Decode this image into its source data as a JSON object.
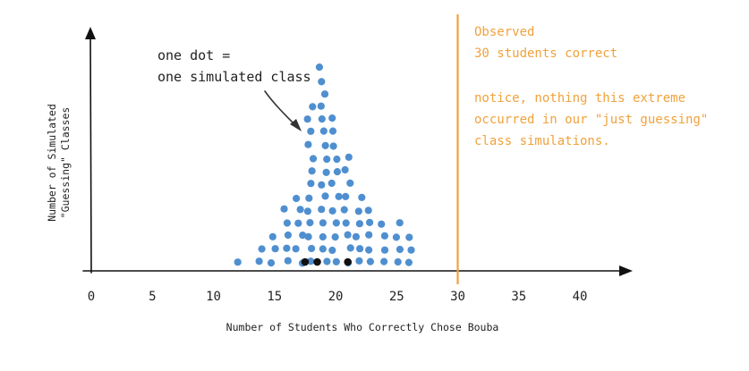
{
  "chart_data": {
    "type": "scatter",
    "subtype": "dot-plot",
    "xlabel": "Number of Students Who Correctly Chose Bouba",
    "ylabel_line1": "Number of Simulated",
    "ylabel_line2": "\"Guessing\" Classes",
    "xticks": [
      0,
      5,
      10,
      15,
      20,
      25,
      30,
      35,
      40
    ],
    "xlim": [
      0,
      43
    ],
    "grid": false,
    "legend": "none",
    "dot_color": "#4f8fd0",
    "highlight_color": "#111111",
    "observed_color": "#f0a23c",
    "dot_counts": [
      {
        "x": 12,
        "count": 1
      },
      {
        "x": 14,
        "count": 2
      },
      {
        "x": 15,
        "count": 3
      },
      {
        "x": 16,
        "count": 5
      },
      {
        "x": 17,
        "count": 6
      },
      {
        "x": 18,
        "count": 13
      },
      {
        "x": 19,
        "count": 16
      },
      {
        "x": 20,
        "count": 12
      },
      {
        "x": 21,
        "count": 9
      },
      {
        "x": 22,
        "count": 6
      },
      {
        "x": 23,
        "count": 5
      },
      {
        "x": 24,
        "count": 4
      },
      {
        "x": 25,
        "count": 4
      },
      {
        "x": 26,
        "count": 3
      }
    ],
    "highlighted": [
      {
        "x": 17.5
      },
      {
        "x": 18.5
      },
      {
        "x": 21
      }
    ],
    "observed": {
      "x": 30,
      "label_line1": "Observed",
      "label_line2": "30 students correct",
      "note_line1": "notice, nothing this extreme",
      "note_line2": "occurred in our \"just guessing\"",
      "note_line3": "class simulations."
    },
    "annotation": {
      "line1": "one dot =",
      "line2": "one simulated class"
    }
  }
}
